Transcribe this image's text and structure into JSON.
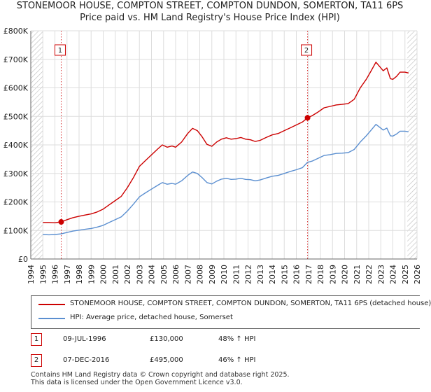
{
  "title_line1": "STONEMOOR HOUSE, COMPTON STREET, COMPTON DUNDON, SOMERTON, TA11 6PS",
  "title_line2": "Price paid vs. HM Land Registry's House Price Index (HPI)",
  "colors": {
    "property": "#cc0000",
    "hpi": "#5b8fd0",
    "grid": "#dddddd",
    "hatch": "#bbbbbb",
    "plot_bg": "#ffffff"
  },
  "chart_data": {
    "type": "line",
    "title": "STONEMOOR HOUSE, COMPTON STREET, COMPTON DUNDON, SOMERTON, TA11 6PS",
    "subtitle": "Price paid vs. HM Land Registry's House Price Index (HPI)",
    "xlim": [
      1994,
      2026
    ],
    "ylim": [
      0,
      800000
    ],
    "x_ticks": [
      1994,
      1995,
      1996,
      1997,
      1998,
      1999,
      2000,
      2001,
      2002,
      2003,
      2004,
      2005,
      2006,
      2007,
      2008,
      2009,
      2010,
      2011,
      2012,
      2013,
      2014,
      2015,
      2016,
      2017,
      2018,
      2019,
      2020,
      2021,
      2022,
      2023,
      2024,
      2025,
      2026
    ],
    "y_ticks": [
      {
        "value": 0,
        "label": "£0"
      },
      {
        "value": 100000,
        "label": "£100K"
      },
      {
        "value": 200000,
        "label": "£200K"
      },
      {
        "value": 300000,
        "label": "£300K"
      },
      {
        "value": 400000,
        "label": "£400K"
      },
      {
        "value": 500000,
        "label": "£500K"
      },
      {
        "value": 600000,
        "label": "£600K"
      },
      {
        "value": 700000,
        "label": "£700K"
      },
      {
        "value": 800000,
        "label": "£800K"
      }
    ],
    "hatched_ranges": [
      [
        1994,
        1995.0
      ],
      [
        2025.2,
        2026
      ]
    ],
    "series": [
      {
        "name": "STONEMOOR HOUSE, COMPTON STREET, COMPTON DUNDON, SOMERTON, TA11 6PS (detached house)",
        "color_key": "property",
        "x": [
          1995.0,
          1995.5,
          1996.0,
          1996.52,
          1997.0,
          1997.5,
          1998.0,
          1998.5,
          1999.0,
          1999.5,
          2000.0,
          2000.5,
          2001.0,
          2001.5,
          2002.0,
          2002.5,
          2003.0,
          2003.5,
          2004.0,
          2004.5,
          2004.9,
          2005.3,
          2005.7,
          2006.0,
          2006.5,
          2007.0,
          2007.4,
          2007.8,
          2008.2,
          2008.6,
          2009.0,
          2009.4,
          2009.8,
          2010.2,
          2010.6,
          2011.0,
          2011.4,
          2011.8,
          2012.2,
          2012.6,
          2013.0,
          2013.5,
          2014.0,
          2014.5,
          2015.0,
          2015.5,
          2016.0,
          2016.5,
          2016.93,
          2017.3,
          2017.8,
          2018.3,
          2018.8,
          2019.3,
          2019.8,
          2020.3,
          2020.8,
          2021.3,
          2021.8,
          2022.2,
          2022.6,
          2022.9,
          2023.2,
          2023.5,
          2023.8,
          2024.0,
          2024.3,
          2024.6,
          2025.0,
          2025.3
        ],
        "y": [
          128000,
          128000,
          127000,
          130000,
          138000,
          145000,
          150000,
          154000,
          158000,
          165000,
          175000,
          190000,
          205000,
          220000,
          250000,
          285000,
          325000,
          345000,
          365000,
          385000,
          400000,
          392000,
          396000,
          392000,
          410000,
          440000,
          458000,
          450000,
          428000,
          402000,
          395000,
          410000,
          420000,
          425000,
          420000,
          422000,
          426000,
          420000,
          418000,
          412000,
          416000,
          426000,
          435000,
          440000,
          450000,
          460000,
          470000,
          480000,
          495000,
          502000,
          515000,
          530000,
          535000,
          540000,
          542000,
          545000,
          560000,
          600000,
          630000,
          660000,
          690000,
          675000,
          660000,
          670000,
          632000,
          630000,
          640000,
          655000,
          655000,
          652000
        ]
      },
      {
        "name": "HPI: Average price, detached house, Somerset",
        "color_key": "hpi",
        "x": [
          1995.0,
          1995.5,
          1996.0,
          1996.52,
          1997.0,
          1997.5,
          1998.0,
          1998.5,
          1999.0,
          1999.5,
          2000.0,
          2000.5,
          2001.0,
          2001.5,
          2002.0,
          2002.5,
          2003.0,
          2003.5,
          2004.0,
          2004.5,
          2004.9,
          2005.3,
          2005.7,
          2006.0,
          2006.5,
          2007.0,
          2007.4,
          2007.8,
          2008.2,
          2008.6,
          2009.0,
          2009.4,
          2009.8,
          2010.2,
          2010.6,
          2011.0,
          2011.4,
          2011.8,
          2012.2,
          2012.6,
          2013.0,
          2013.5,
          2014.0,
          2014.5,
          2015.0,
          2015.5,
          2016.0,
          2016.5,
          2016.93,
          2017.3,
          2017.8,
          2018.3,
          2018.8,
          2019.3,
          2019.8,
          2020.3,
          2020.8,
          2021.3,
          2021.8,
          2022.2,
          2022.6,
          2022.9,
          2023.2,
          2023.5,
          2023.8,
          2024.0,
          2024.3,
          2024.6,
          2025.0,
          2025.3
        ],
        "y": [
          86000,
          85000,
          86000,
          88000,
          93000,
          98000,
          101000,
          104000,
          107000,
          112000,
          118000,
          128000,
          138000,
          148000,
          168000,
          192000,
          218000,
          232000,
          245000,
          258000,
          268000,
          262000,
          265000,
          262000,
          274000,
          293000,
          305000,
          300000,
          285000,
          268000,
          263000,
          273000,
          280000,
          283000,
          279000,
          280000,
          283000,
          279000,
          278000,
          274000,
          277000,
          284000,
          290000,
          293000,
          300000,
          307000,
          313000,
          320000,
          339000,
          343000,
          353000,
          363000,
          366000,
          370000,
          371000,
          373000,
          384000,
          410000,
          432000,
          452000,
          472000,
          462000,
          452000,
          459000,
          432000,
          431000,
          438000,
          448000,
          448000,
          446000
        ]
      }
    ],
    "annotations": [
      {
        "label": "1",
        "x": 1996.52,
        "y": 130000
      },
      {
        "label": "2",
        "x": 2016.93,
        "y": 495000
      }
    ]
  },
  "legend": {
    "property_label": "STONEMOOR HOUSE, COMPTON STREET, COMPTON DUNDON, SOMERTON, TA11 6PS (detached house)",
    "hpi_label": "HPI: Average price, detached house, Somerset"
  },
  "sales": [
    {
      "num": "1",
      "date": "09-JUL-1996",
      "price": "£130,000",
      "hpi": "48% ↑ HPI"
    },
    {
      "num": "2",
      "date": "07-DEC-2016",
      "price": "£495,000",
      "hpi": "46% ↑ HPI"
    }
  ],
  "footer": {
    "line1": "Contains HM Land Registry data © Crown copyright and database right 2025.",
    "line2": "This data is licensed under the Open Government Licence v3.0."
  }
}
